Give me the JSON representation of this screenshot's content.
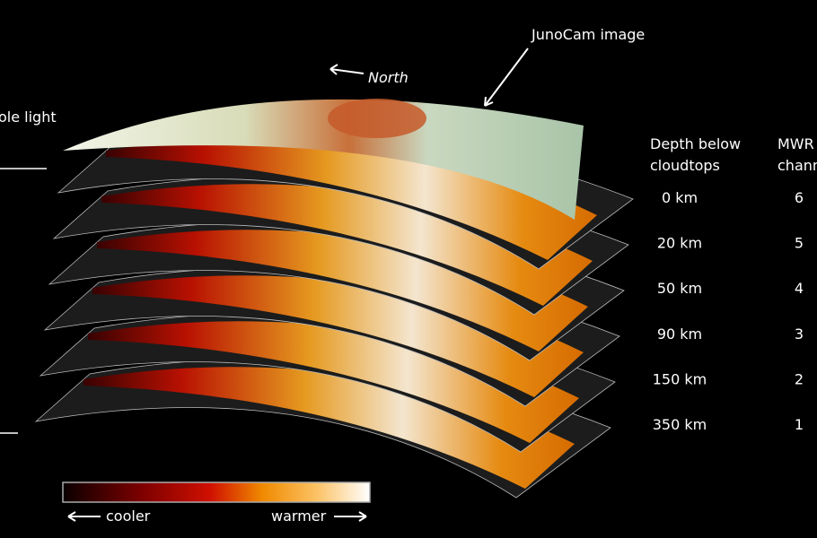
{
  "annotations": {
    "junocam": "JunoCam image",
    "north": "North",
    "visible": "ole light"
  },
  "table": {
    "depth_header": [
      "Depth below",
      "cloudtops"
    ],
    "channel_header": [
      "MWR",
      "channe"
    ],
    "rows": [
      [
        "0 km",
        "6"
      ],
      [
        "20 km",
        "5"
      ],
      [
        "50 km",
        "4"
      ],
      [
        "90 km",
        "3"
      ],
      [
        "150 km",
        "2"
      ],
      [
        "350 km",
        "1"
      ]
    ]
  },
  "colorbar": {
    "cooler": "cooler",
    "warmer": "warmer"
  }
}
